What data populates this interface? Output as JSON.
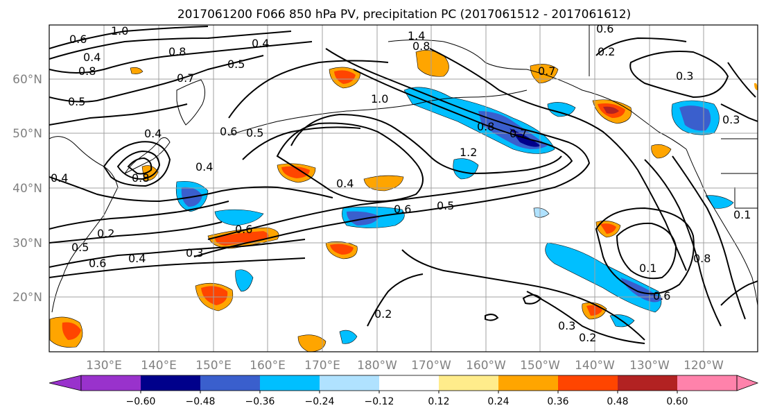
{
  "title": "2017061200 F066 850 hPa PV, precipitation PC (2017061512 - 2017061612)",
  "map": {
    "lon_ticks": [
      "130°E",
      "140°E",
      "150°E",
      "160°E",
      "170°E",
      "180°W",
      "170°W",
      "160°W",
      "150°W",
      "140°W",
      "130°W",
      "120°W"
    ],
    "lat_ticks": [
      "60°N",
      "50°N",
      "40°N",
      "30°N",
      "20°N"
    ],
    "grid": true,
    "contour_labels": [
      "1.0",
      "0.6",
      "0.4",
      "0.8",
      "0.7",
      "0.5",
      "0.8",
      "0.4",
      "1.4",
      "0.8",
      "0.7",
      "0.6",
      "0.2",
      "0.3",
      "0.5",
      "0.4",
      "0.4",
      "0.6",
      "0.5",
      "0.8",
      "0.4",
      "1.0",
      "0.8",
      "0.7",
      "1.2",
      "0.4",
      "0.6",
      "0.5",
      "0.2",
      "0.5",
      "0.6",
      "0.4",
      "0.6",
      "0.3",
      "0.2",
      "0.3",
      "0.2",
      "0.1",
      "0.6",
      "0.8",
      "0.3",
      "0.1"
    ]
  },
  "colorbar": {
    "ticks": [
      "−0.60",
      "−0.48",
      "−0.36",
      "−0.24",
      "−0.12",
      "0.12",
      "0.24",
      "0.36",
      "0.48",
      "0.60"
    ],
    "colors": [
      "#9932cc",
      "#00008b",
      "#3a5fcd",
      "#00bfff",
      "#b0e2ff",
      "#ffffff",
      "#ffec8b",
      "#ffa500",
      "#ff4500",
      "#b22222",
      "#ff82ab"
    ],
    "extend": "both"
  }
}
